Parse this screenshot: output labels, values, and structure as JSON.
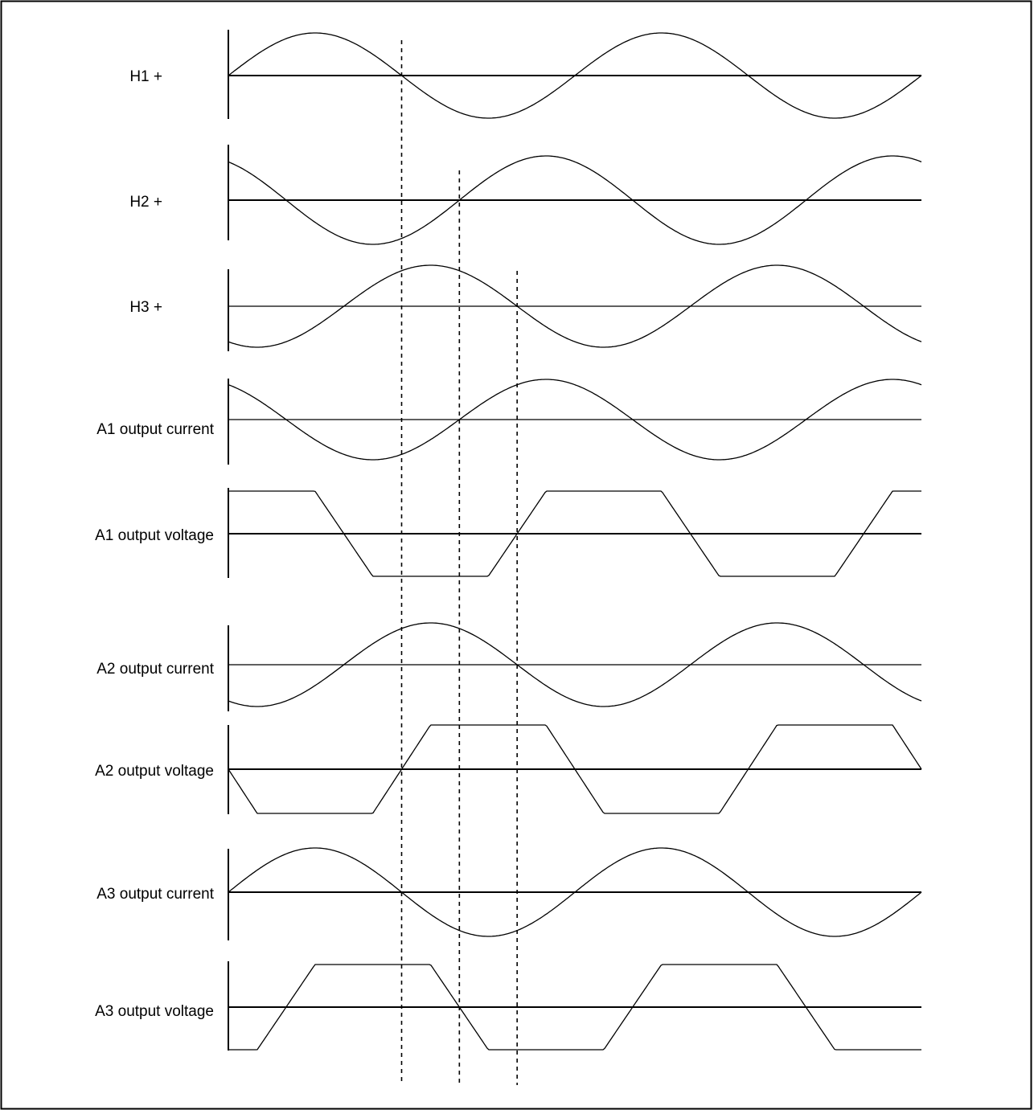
{
  "diagram": {
    "title": "",
    "rows": [
      {
        "id": "h1",
        "label": "H1 +",
        "kind": "sine",
        "phase_deg": 0,
        "baseline_weight": "bold"
      },
      {
        "id": "h2",
        "label": "H2 +",
        "kind": "sine",
        "phase_deg": 120,
        "baseline_weight": "bold"
      },
      {
        "id": "h3",
        "label": "H3 +",
        "kind": "sine",
        "phase_deg": 240,
        "baseline_weight": "thin"
      },
      {
        "id": "a1-current",
        "label": "A1 output current",
        "kind": "sine",
        "phase_deg": 120,
        "baseline_weight": "thin"
      },
      {
        "id": "a1-voltage",
        "label": "A1 output voltage",
        "kind": "trapezoid",
        "phase_deg": 60,
        "baseline_weight": "bold"
      },
      {
        "id": "a2-current",
        "label": "A2 output current",
        "kind": "sine",
        "phase_deg": 240,
        "baseline_weight": "thin"
      },
      {
        "id": "a2-voltage",
        "label": "A2 output voltage",
        "kind": "trapezoid",
        "phase_deg": 180,
        "baseline_weight": "bold"
      },
      {
        "id": "a3-current",
        "label": "A3 output current",
        "kind": "sine",
        "phase_deg": 0,
        "baseline_weight": "bold"
      },
      {
        "id": "a3-voltage",
        "label": "A3 output voltage",
        "kind": "trapezoid",
        "phase_deg": 300,
        "baseline_weight": "bold"
      }
    ],
    "cycles_shown": 2,
    "reference_lines_deg": [
      180,
      240,
      300
    ],
    "colors": {
      "wave": "#000000",
      "reference": "#000000",
      "frame": "#000000"
    }
  }
}
